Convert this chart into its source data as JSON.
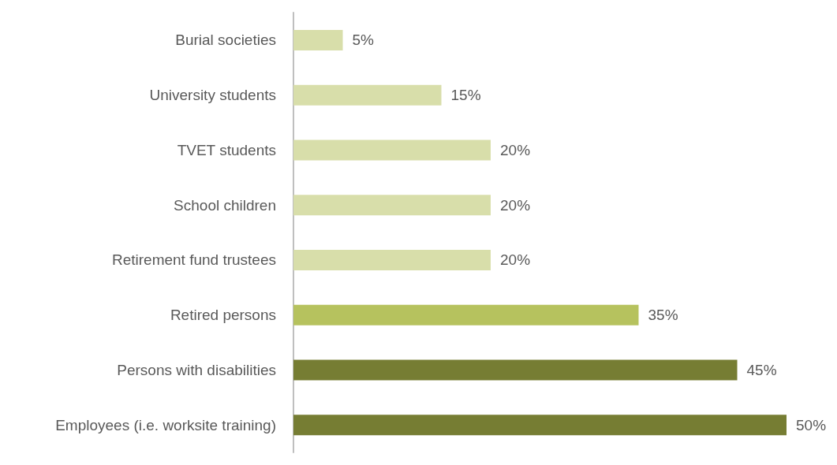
{
  "chart_data": {
    "type": "bar",
    "orientation": "horizontal",
    "categories": [
      "Burial societies",
      "University students",
      "TVET students",
      "School children",
      "Retirement fund trustees",
      "Retired persons",
      "Persons with disabilities",
      "Employees (i.e. worksite training)"
    ],
    "values": [
      5,
      15,
      20,
      20,
      20,
      35,
      45,
      50
    ],
    "colors": [
      "#d8deaa",
      "#d8deaa",
      "#d8deaa",
      "#d8deaa",
      "#d8deaa",
      "#b6c25e",
      "#767d33",
      "#767d33"
    ],
    "value_labels": [
      "5%",
      "15%",
      "20%",
      "20%",
      "20%",
      "35%",
      "45%",
      "50%"
    ]
  }
}
